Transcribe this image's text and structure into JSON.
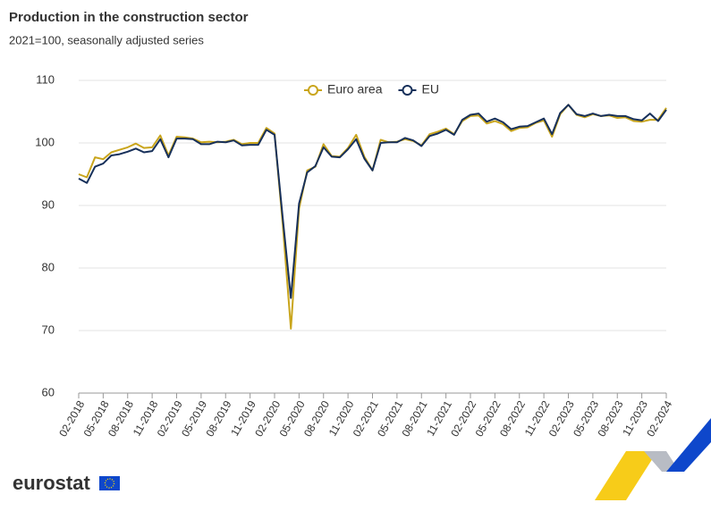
{
  "chart_data": {
    "type": "line",
    "title": "Production in the construction sector",
    "subtitle": "2021=100, seasonally adjusted series",
    "categories": [
      "02-2018",
      null,
      null,
      "05-2018",
      null,
      null,
      "08-2018",
      null,
      null,
      "11-2018",
      null,
      null,
      "02-2019",
      null,
      null,
      "05-2019",
      null,
      null,
      "08-2019",
      null,
      null,
      "11-2019",
      null,
      null,
      "02-2020",
      null,
      null,
      "05-2020",
      null,
      null,
      "08-2020",
      null,
      null,
      "11-2020",
      null,
      null,
      "02-2021",
      null,
      null,
      "05-2021",
      null,
      null,
      "08-2021",
      null,
      null,
      "11-2021",
      null,
      null,
      "02-2022",
      null,
      null,
      "05-2022",
      null,
      null,
      "08-2022",
      null,
      null,
      "11-2022",
      null,
      null,
      "02-2023",
      null,
      null,
      "05-2023",
      null,
      null,
      "08-2023",
      null,
      null,
      "11-2023",
      null,
      null,
      "02-2024"
    ],
    "series": [
      {
        "name": "Euro area",
        "color": "#c9a51c",
        "values": [
          95.0,
          94.5,
          97.7,
          97.4,
          98.5,
          98.9,
          99.3,
          99.9,
          99.2,
          99.3,
          101.2,
          98.0,
          101.0,
          100.9,
          100.7,
          100.1,
          100.2,
          100.1,
          100.2,
          100.5,
          99.8,
          100.0,
          100.0,
          102.4,
          101.5,
          87.0,
          70.3,
          89.5,
          95.6,
          96.2,
          99.8,
          97.9,
          97.8,
          99.2,
          101.3,
          97.8,
          95.6,
          100.5,
          100.1,
          100.2,
          100.6,
          100.3,
          99.6,
          101.4,
          101.8,
          102.3,
          101.4,
          103.5,
          104.3,
          104.4,
          103.1,
          103.5,
          103.0,
          101.9,
          102.4,
          102.5,
          103.2,
          103.6,
          101.0,
          104.6,
          106.1,
          104.5,
          104.1,
          104.6,
          104.3,
          104.4,
          104.0,
          104.1,
          103.5,
          103.4,
          103.7,
          103.7,
          105.6
        ]
      },
      {
        "name": "EU",
        "color": "#17305a",
        "values": [
          94.3,
          93.6,
          96.2,
          96.7,
          98.0,
          98.2,
          98.6,
          99.1,
          98.5,
          98.7,
          100.6,
          97.7,
          100.7,
          100.7,
          100.6,
          99.8,
          99.8,
          100.2,
          100.1,
          100.4,
          99.6,
          99.7,
          99.7,
          102.1,
          101.3,
          88.0,
          75.2,
          90.3,
          95.3,
          96.3,
          99.3,
          97.8,
          97.7,
          99.0,
          100.6,
          97.5,
          95.6,
          100.0,
          100.1,
          100.1,
          100.8,
          100.4,
          99.5,
          101.1,
          101.5,
          102.1,
          101.3,
          103.7,
          104.5,
          104.7,
          103.4,
          103.9,
          103.3,
          102.2,
          102.6,
          102.7,
          103.3,
          103.9,
          101.4,
          104.8,
          106.1,
          104.6,
          104.3,
          104.7,
          104.3,
          104.5,
          104.3,
          104.3,
          103.8,
          103.6,
          104.7,
          103.5,
          105.3
        ]
      }
    ],
    "ylim": [
      60,
      110
    ],
    "yticks": [
      60,
      70,
      80,
      90,
      100,
      110
    ],
    "grid": true,
    "legend": "top"
  },
  "logo": "eurostat"
}
